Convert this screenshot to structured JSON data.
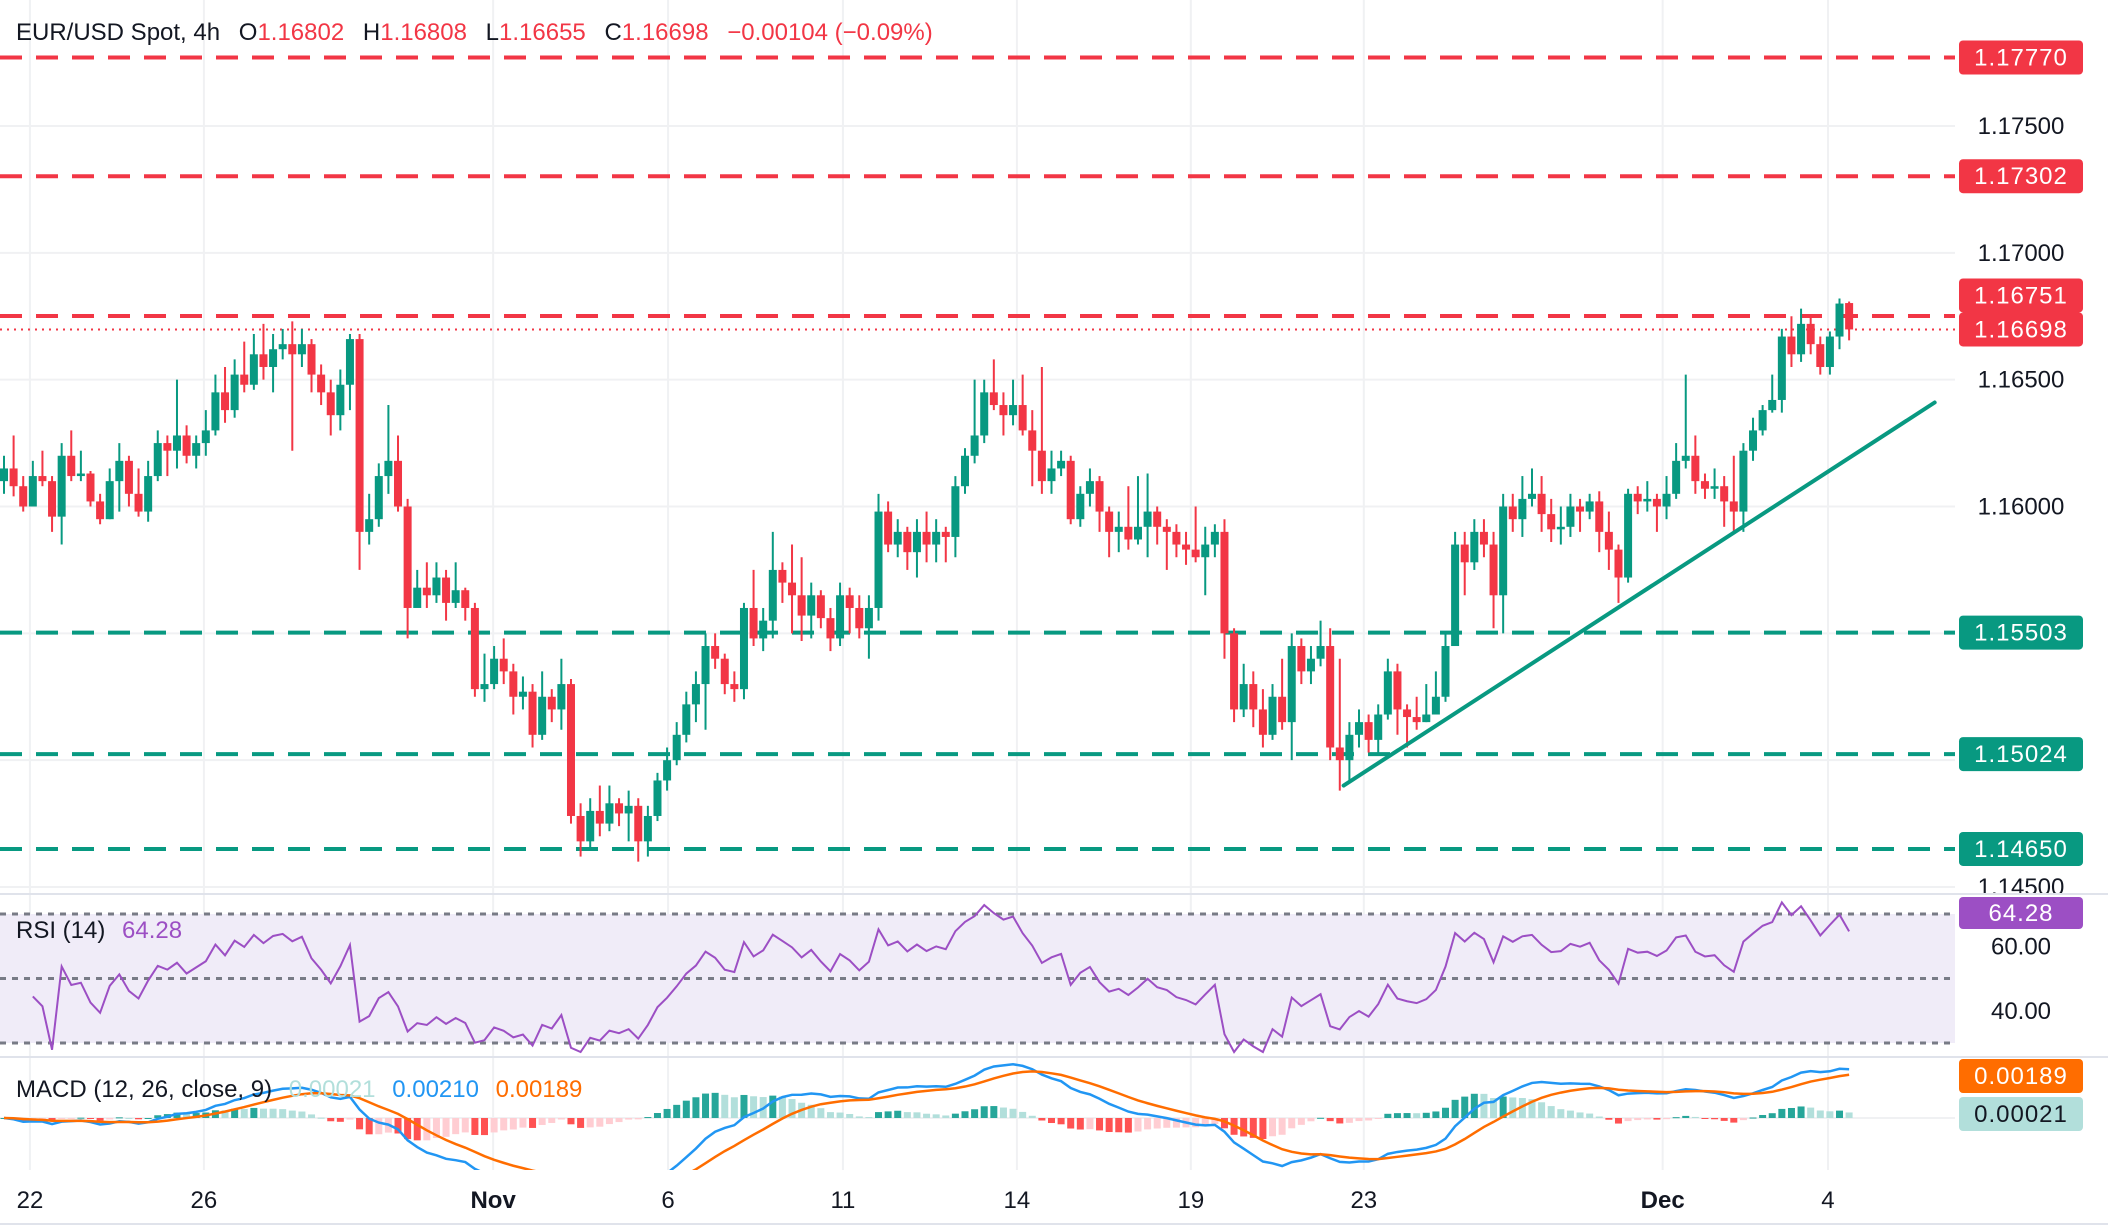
{
  "header": {
    "symbol": "EUR/USD Spot, 4h",
    "o_label": "O",
    "open": "1.16802",
    "h_label": "H",
    "high": "1.16808",
    "l_label": "L",
    "low": "1.16655",
    "c_label": "C",
    "close": "1.16698",
    "change": "−0.00104 (−0.09%)"
  },
  "colors": {
    "up": "#089981",
    "down": "#f23645",
    "rsi": "#9c4fc4",
    "rsi_band": "#f0ecf8",
    "macd": "#2196f3",
    "signal": "#ff6d00",
    "hist_up_strong": "#26a69a",
    "hist_up_weak": "#b2dfdb",
    "hist_down_strong": "#ff5252",
    "hist_down_weak": "#ffcdd2",
    "grid": "#f0f1f3",
    "text": "#131722"
  },
  "price_axis": {
    "ticks": [
      {
        "value": 1.175,
        "label": "1.17500"
      },
      {
        "value": 1.17,
        "label": "1.17000"
      },
      {
        "value": 1.165,
        "label": "1.16500"
      },
      {
        "value": 1.16,
        "label": "1.16000"
      },
      {
        "value": 1.145,
        "label": "1.14500"
      }
    ],
    "grid_values": [
      1.175,
      1.17,
      1.165,
      1.16,
      1.155,
      1.15,
      1.145
    ]
  },
  "levels": [
    {
      "value": 1.1777,
      "label": "1.17770",
      "kind": "resistance",
      "color": "#f23645"
    },
    {
      "value": 1.17302,
      "label": "1.17302",
      "kind": "resistance",
      "color": "#f23645"
    },
    {
      "value": 1.16751,
      "label": "1.16751",
      "kind": "resistance",
      "color": "#f23645"
    },
    {
      "value": 1.15503,
      "label": "1.15503",
      "kind": "support",
      "color": "#089981"
    },
    {
      "value": 1.15024,
      "label": "1.15024",
      "kind": "support",
      "color": "#089981"
    },
    {
      "value": 1.1465,
      "label": "1.14650",
      "kind": "support",
      "color": "#089981"
    }
  ],
  "last_price": {
    "value": 1.16698,
    "label": "1.16698",
    "color": "#f23645"
  },
  "rsi": {
    "label": "RSI (14)",
    "value": "64.28",
    "ticks": [
      {
        "value": 60,
        "label": "60.00"
      },
      {
        "value": 40,
        "label": "40.00"
      }
    ],
    "band": [
      30,
      70
    ],
    "mid": 50
  },
  "macd": {
    "label": "MACD (12, 26, close, 9)",
    "hist": "0.00021",
    "macd": "0.00210",
    "signal": "0.00189"
  },
  "date_axis": [
    {
      "label": "22",
      "index": 2.7,
      "bold": false
    },
    {
      "label": "26",
      "index": 20.8,
      "bold": false
    },
    {
      "label": "Nov",
      "index": 50.9,
      "bold": true
    },
    {
      "label": "6",
      "index": 69.1,
      "bold": false
    },
    {
      "label": "11",
      "index": 87.3,
      "bold": false
    },
    {
      "label": "14",
      "index": 105.4,
      "bold": false
    },
    {
      "label": "19",
      "index": 123.5,
      "bold": false
    },
    {
      "label": "23",
      "index": 141.5,
      "bold": false
    },
    {
      "label": "Dec",
      "index": 172.6,
      "bold": true
    },
    {
      "label": "4",
      "index": 189.8,
      "bold": false
    }
  ],
  "chart_data": {
    "type": "candlestick",
    "title": "EUR/USD Spot, 4h",
    "ylim": [
      1.1437,
      1.1787
    ],
    "grid": true,
    "trendline": {
      "from": {
        "index": 139.4,
        "price": 1.149
      },
      "to": {
        "index": 200.9,
        "price": 1.1641
      },
      "color": "#089981"
    },
    "candles_ohlc": [
      [
        1.161,
        1.162,
        1.1605,
        1.1615
      ],
      [
        1.1615,
        1.1628,
        1.1604,
        1.1608
      ],
      [
        1.1608,
        1.1612,
        1.1598,
        1.16
      ],
      [
        1.16,
        1.1618,
        1.16,
        1.1612
      ],
      [
        1.1612,
        1.1622,
        1.1608,
        1.161
      ],
      [
        1.161,
        1.1612,
        1.159,
        1.1596
      ],
      [
        1.1596,
        1.1625,
        1.1585,
        1.162
      ],
      [
        1.162,
        1.163,
        1.161,
        1.1612
      ],
      [
        1.1612,
        1.1622,
        1.161,
        1.1613
      ],
      [
        1.1613,
        1.1614,
        1.16,
        1.1602
      ],
      [
        1.1602,
        1.1605,
        1.1593,
        1.1595
      ],
      [
        1.1595,
        1.1615,
        1.1595,
        1.161
      ],
      [
        1.161,
        1.1625,
        1.1598,
        1.1618
      ],
      [
        1.1618,
        1.162,
        1.16,
        1.1605
      ],
      [
        1.1605,
        1.1615,
        1.1596,
        1.1598
      ],
      [
        1.1598,
        1.1618,
        1.1594,
        1.1612
      ],
      [
        1.1612,
        1.163,
        1.161,
        1.1625
      ],
      [
        1.1625,
        1.1628,
        1.1612,
        1.1622
      ],
      [
        1.1622,
        1.165,
        1.1615,
        1.1628
      ],
      [
        1.1628,
        1.1632,
        1.1617,
        1.162
      ],
      [
        1.162,
        1.1628,
        1.1615,
        1.1625
      ],
      [
        1.1625,
        1.1638,
        1.162,
        1.163
      ],
      [
        1.163,
        1.1652,
        1.1628,
        1.1645
      ],
      [
        1.1645,
        1.1655,
        1.1633,
        1.1638
      ],
      [
        1.1638,
        1.1658,
        1.1635,
        1.1652
      ],
      [
        1.1652,
        1.1665,
        1.1645,
        1.1648
      ],
      [
        1.1648,
        1.1668,
        1.1646,
        1.166
      ],
      [
        1.166,
        1.1672,
        1.165,
        1.1655
      ],
      [
        1.1655,
        1.1668,
        1.1645,
        1.1662
      ],
      [
        1.1662,
        1.167,
        1.1658,
        1.1664
      ],
      [
        1.1664,
        1.1673,
        1.1622,
        1.166
      ],
      [
        1.166,
        1.167,
        1.1655,
        1.1664
      ],
      [
        1.1664,
        1.1666,
        1.1645,
        1.1652
      ],
      [
        1.1652,
        1.1656,
        1.164,
        1.1645
      ],
      [
        1.1645,
        1.165,
        1.1628,
        1.1636
      ],
      [
        1.1636,
        1.1654,
        1.163,
        1.1648
      ],
      [
        1.1648,
        1.1668,
        1.1638,
        1.1666
      ],
      [
        1.1666,
        1.1668,
        1.1575,
        1.159
      ],
      [
        1.159,
        1.1605,
        1.1585,
        1.1595
      ],
      [
        1.1595,
        1.1617,
        1.1592,
        1.1612
      ],
      [
        1.1612,
        1.164,
        1.1605,
        1.1618
      ],
      [
        1.1618,
        1.1628,
        1.1598,
        1.16
      ],
      [
        1.16,
        1.1603,
        1.1548,
        1.156
      ],
      [
        1.156,
        1.1575,
        1.1562,
        1.1568
      ],
      [
        1.1568,
        1.1578,
        1.156,
        1.1565
      ],
      [
        1.1565,
        1.1578,
        1.1562,
        1.1572
      ],
      [
        1.1572,
        1.1575,
        1.1555,
        1.1562
      ],
      [
        1.1562,
        1.1578,
        1.156,
        1.1567
      ],
      [
        1.1567,
        1.1568,
        1.1555,
        1.156
      ],
      [
        1.156,
        1.1562,
        1.1525,
        1.1528
      ],
      [
        1.1528,
        1.1542,
        1.1523,
        1.153
      ],
      [
        1.153,
        1.1545,
        1.1528,
        1.154
      ],
      [
        1.154,
        1.1548,
        1.153,
        1.1535
      ],
      [
        1.1535,
        1.1538,
        1.1518,
        1.1525
      ],
      [
        1.1525,
        1.1533,
        1.152,
        1.1527
      ],
      [
        1.1527,
        1.153,
        1.1505,
        1.151
      ],
      [
        1.151,
        1.1535,
        1.1508,
        1.1525
      ],
      [
        1.1525,
        1.1528,
        1.1515,
        1.152
      ],
      [
        1.152,
        1.154,
        1.1512,
        1.153
      ],
      [
        1.153,
        1.1532,
        1.1475,
        1.1478
      ],
      [
        1.1478,
        1.1483,
        1.1462,
        1.1468
      ],
      [
        1.1468,
        1.1485,
        1.1465,
        1.148
      ],
      [
        1.148,
        1.149,
        1.147,
        1.1475
      ],
      [
        1.1475,
        1.149,
        1.1472,
        1.1483
      ],
      [
        1.1483,
        1.1485,
        1.1474,
        1.1479
      ],
      [
        1.1479,
        1.1488,
        1.1468,
        1.1482
      ],
      [
        1.1482,
        1.1485,
        1.146,
        1.1468
      ],
      [
        1.1468,
        1.1482,
        1.1462,
        1.1478
      ],
      [
        1.1478,
        1.1495,
        1.1476,
        1.1492
      ],
      [
        1.1492,
        1.1505,
        1.1488,
        1.15
      ],
      [
        1.15,
        1.1515,
        1.1498,
        1.151
      ],
      [
        1.151,
        1.1527,
        1.1507,
        1.1522
      ],
      [
        1.1522,
        1.1535,
        1.1515,
        1.153
      ],
      [
        1.153,
        1.155,
        1.1512,
        1.1545
      ],
      [
        1.1545,
        1.155,
        1.1536,
        1.154
      ],
      [
        1.154,
        1.1542,
        1.1526,
        1.153
      ],
      [
        1.153,
        1.1535,
        1.1523,
        1.1528
      ],
      [
        1.1528,
        1.1562,
        1.1524,
        1.156
      ],
      [
        1.156,
        1.1575,
        1.1545,
        1.1548
      ],
      [
        1.1548,
        1.156,
        1.1543,
        1.1555
      ],
      [
        1.1555,
        1.159,
        1.1548,
        1.1575
      ],
      [
        1.1575,
        1.1578,
        1.1562,
        1.157
      ],
      [
        1.157,
        1.1585,
        1.155,
        1.1565
      ],
      [
        1.1565,
        1.158,
        1.1547,
        1.1557
      ],
      [
        1.1557,
        1.157,
        1.1548,
        1.1565
      ],
      [
        1.1565,
        1.1567,
        1.1552,
        1.1556
      ],
      [
        1.1556,
        1.156,
        1.1543,
        1.1548
      ],
      [
        1.1548,
        1.157,
        1.1545,
        1.1565
      ],
      [
        1.1565,
        1.1568,
        1.155,
        1.156
      ],
      [
        1.156,
        1.1565,
        1.1548,
        1.1552
      ],
      [
        1.1552,
        1.1565,
        1.154,
        1.156
      ],
      [
        1.156,
        1.1605,
        1.1555,
        1.1598
      ],
      [
        1.1598,
        1.1602,
        1.1582,
        1.1585
      ],
      [
        1.1585,
        1.1595,
        1.158,
        1.159
      ],
      [
        1.159,
        1.1592,
        1.1575,
        1.1582
      ],
      [
        1.1582,
        1.1595,
        1.1572,
        1.159
      ],
      [
        1.159,
        1.1598,
        1.1578,
        1.1585
      ],
      [
        1.1585,
        1.1595,
        1.1578,
        1.159
      ],
      [
        1.159,
        1.1592,
        1.1578,
        1.1588
      ],
      [
        1.1588,
        1.1612,
        1.158,
        1.1608
      ],
      [
        1.1608,
        1.1623,
        1.1605,
        1.162
      ],
      [
        1.162,
        1.165,
        1.1617,
        1.1628
      ],
      [
        1.1628,
        1.165,
        1.1625,
        1.1645
      ],
      [
        1.1645,
        1.1658,
        1.1638,
        1.164
      ],
      [
        1.164,
        1.1645,
        1.1628,
        1.1636
      ],
      [
        1.1636,
        1.165,
        1.1632,
        1.164
      ],
      [
        1.164,
        1.1652,
        1.1628,
        1.163
      ],
      [
        1.163,
        1.1638,
        1.1608,
        1.1622
      ],
      [
        1.1622,
        1.1655,
        1.1605,
        1.161
      ],
      [
        1.161,
        1.1622,
        1.1605,
        1.1615
      ],
      [
        1.1615,
        1.1622,
        1.1612,
        1.1618
      ],
      [
        1.1618,
        1.162,
        1.1593,
        1.1595
      ],
      [
        1.1595,
        1.1608,
        1.1592,
        1.1605
      ],
      [
        1.1605,
        1.1615,
        1.16,
        1.161
      ],
      [
        1.161,
        1.1612,
        1.159,
        1.1598
      ],
      [
        1.1598,
        1.16,
        1.158,
        1.159
      ],
      [
        1.159,
        1.1598,
        1.1582,
        1.1592
      ],
      [
        1.1592,
        1.1608,
        1.1583,
        1.1587
      ],
      [
        1.1587,
        1.1612,
        1.1585,
        1.1592
      ],
      [
        1.1592,
        1.1613,
        1.158,
        1.1598
      ],
      [
        1.1598,
        1.16,
        1.1585,
        1.1592
      ],
      [
        1.1592,
        1.1595,
        1.1575,
        1.159
      ],
      [
        1.159,
        1.1593,
        1.158,
        1.1585
      ],
      [
        1.1585,
        1.159,
        1.1577,
        1.1583
      ],
      [
        1.1583,
        1.16,
        1.1578,
        1.158
      ],
      [
        1.158,
        1.1592,
        1.1565,
        1.1585
      ],
      [
        1.1585,
        1.1593,
        1.158,
        1.159
      ],
      [
        1.159,
        1.1595,
        1.154,
        1.155
      ],
      [
        1.155,
        1.1552,
        1.1515,
        1.152
      ],
      [
        1.152,
        1.1538,
        1.1517,
        1.153
      ],
      [
        1.153,
        1.1535,
        1.1513,
        1.152
      ],
      [
        1.152,
        1.1528,
        1.1505,
        1.151
      ],
      [
        1.151,
        1.153,
        1.1508,
        1.1525
      ],
      [
        1.1525,
        1.154,
        1.1512,
        1.1515
      ],
      [
        1.1515,
        1.155,
        1.15,
        1.1545
      ],
      [
        1.1545,
        1.1548,
        1.153,
        1.1535
      ],
      [
        1.1535,
        1.1545,
        1.153,
        1.154
      ],
      [
        1.154,
        1.1555,
        1.1537,
        1.1545
      ],
      [
        1.1545,
        1.1552,
        1.15,
        1.1505
      ],
      [
        1.1505,
        1.154,
        1.1488,
        1.15
      ],
      [
        1.15,
        1.1515,
        1.1492,
        1.151
      ],
      [
        1.151,
        1.152,
        1.1505,
        1.1515
      ],
      [
        1.1515,
        1.1518,
        1.1503,
        1.1508
      ],
      [
        1.1508,
        1.1522,
        1.1503,
        1.1518
      ],
      [
        1.1518,
        1.154,
        1.1516,
        1.1535
      ],
      [
        1.1535,
        1.1538,
        1.151,
        1.152
      ],
      [
        1.152,
        1.1522,
        1.1505,
        1.1517
      ],
      [
        1.1517,
        1.1525,
        1.1512,
        1.1515
      ],
      [
        1.1515,
        1.153,
        1.1515,
        1.1518
      ],
      [
        1.1518,
        1.1535,
        1.1518,
        1.1525
      ],
      [
        1.1525,
        1.155,
        1.1523,
        1.1545
      ],
      [
        1.1545,
        1.159,
        1.1545,
        1.1585
      ],
      [
        1.1585,
        1.159,
        1.1565,
        1.1578
      ],
      [
        1.1578,
        1.1595,
        1.1575,
        1.159
      ],
      [
        1.159,
        1.1595,
        1.158,
        1.1585
      ],
      [
        1.1585,
        1.159,
        1.1552,
        1.1565
      ],
      [
        1.1565,
        1.1605,
        1.155,
        1.16
      ],
      [
        1.16,
        1.1605,
        1.159,
        1.1595
      ],
      [
        1.1595,
        1.1612,
        1.1588,
        1.1603
      ],
      [
        1.1603,
        1.1615,
        1.16,
        1.1605
      ],
      [
        1.1605,
        1.1612,
        1.159,
        1.1597
      ],
      [
        1.1597,
        1.1603,
        1.1586,
        1.1591
      ],
      [
        1.1591,
        1.16,
        1.1585,
        1.1592
      ],
      [
        1.1592,
        1.1605,
        1.1588,
        1.16
      ],
      [
        1.16,
        1.1603,
        1.159,
        1.1598
      ],
      [
        1.1598,
        1.1605,
        1.1595,
        1.1602
      ],
      [
        1.1602,
        1.1606,
        1.1582,
        1.159
      ],
      [
        1.159,
        1.1598,
        1.1575,
        1.1583
      ],
      [
        1.1583,
        1.1585,
        1.1562,
        1.1572
      ],
      [
        1.1572,
        1.1607,
        1.157,
        1.1605
      ],
      [
        1.1605,
        1.1608,
        1.1597,
        1.1602
      ],
      [
        1.1602,
        1.161,
        1.1598,
        1.1603
      ],
      [
        1.1603,
        1.1605,
        1.159,
        1.16
      ],
      [
        1.16,
        1.1612,
        1.1595,
        1.1605
      ],
      [
        1.1605,
        1.1625,
        1.1603,
        1.1618
      ],
      [
        1.1618,
        1.1652,
        1.1615,
        1.162
      ],
      [
        1.162,
        1.1628,
        1.1605,
        1.161
      ],
      [
        1.161,
        1.1613,
        1.1603,
        1.1607
      ],
      [
        1.1607,
        1.1615,
        1.1603,
        1.1608
      ],
      [
        1.1608,
        1.1612,
        1.1592,
        1.1602
      ],
      [
        1.1602,
        1.162,
        1.159,
        1.1598
      ],
      [
        1.1598,
        1.1625,
        1.159,
        1.1622
      ],
      [
        1.1622,
        1.1635,
        1.1618,
        1.163
      ],
      [
        1.163,
        1.164,
        1.1628,
        1.1638
      ],
      [
        1.1638,
        1.1652,
        1.1637,
        1.1642
      ],
      [
        1.1642,
        1.167,
        1.1637,
        1.1667
      ],
      [
        1.1667,
        1.1675,
        1.1655,
        1.166
      ],
      [
        1.166,
        1.1678,
        1.1657,
        1.1672
      ],
      [
        1.1672,
        1.1675,
        1.166,
        1.1664
      ],
      [
        1.1664,
        1.1667,
        1.1652,
        1.1655
      ],
      [
        1.1655,
        1.1669,
        1.1652,
        1.1667
      ],
      [
        1.1667,
        1.1682,
        1.1662,
        1.168
      ],
      [
        1.16802,
        1.16808,
        1.16655,
        1.16698
      ]
    ]
  }
}
